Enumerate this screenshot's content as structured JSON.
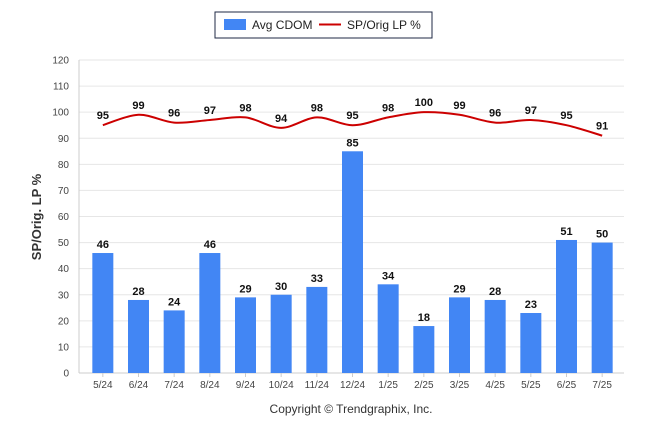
{
  "colors": {
    "bar": "#4286f4",
    "line": "#cc0000"
  },
  "chart_data": {
    "type": "bar",
    "categories": [
      "5/24",
      "6/24",
      "7/24",
      "8/24",
      "9/24",
      "10/24",
      "11/24",
      "12/24",
      "1/25",
      "2/25",
      "3/25",
      "4/25",
      "5/25",
      "6/25",
      "7/25"
    ],
    "series": [
      {
        "name": "Avg CDOM",
        "type": "bar",
        "values": [
          46,
          28,
          24,
          46,
          29,
          30,
          33,
          85,
          34,
          18,
          29,
          28,
          23,
          51,
          50
        ]
      },
      {
        "name": "SP/Orig LP %",
        "type": "line",
        "values": [
          95,
          99,
          96,
          97,
          98,
          94,
          98,
          95,
          98,
          100,
          99,
          96,
          97,
          95,
          91
        ]
      }
    ],
    "ylabel": "SP/Orig. LP %",
    "ylim": [
      0,
      120
    ],
    "yticks": [
      0,
      10,
      20,
      30,
      40,
      50,
      60,
      70,
      80,
      90,
      100,
      110,
      120
    ],
    "grid": true,
    "legend": "top-center",
    "footer": "Copyright © Trendgraphix, Inc."
  }
}
